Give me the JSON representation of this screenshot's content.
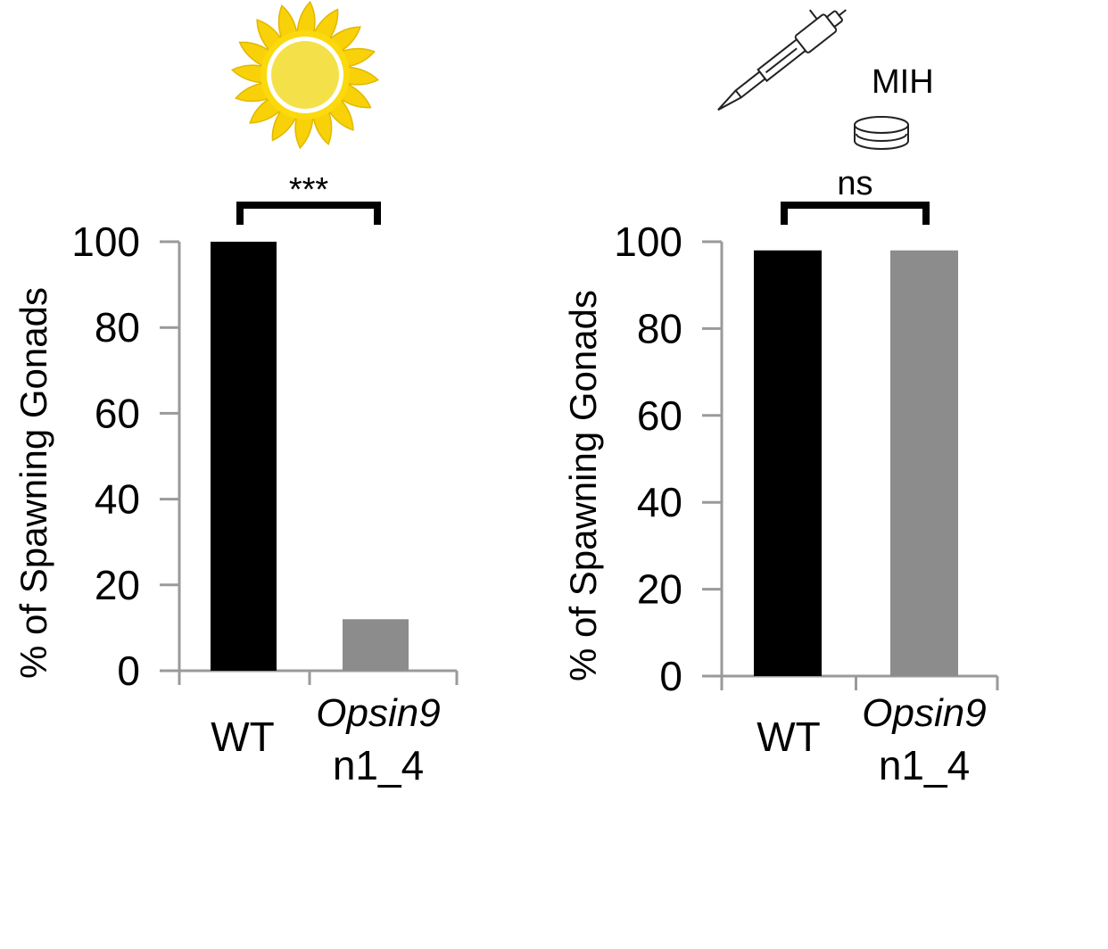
{
  "chart_data": [
    {
      "type": "bar",
      "condition_icon": "sun-icon",
      "categories": [
        "WT",
        "Opsin9 n1_4"
      ],
      "category_lines": [
        [
          "WT"
        ],
        [
          "Opsin9",
          "n1_4"
        ]
      ],
      "category_italic": [
        false,
        true
      ],
      "values": [
        100,
        12
      ],
      "colors": [
        "#000000",
        "#8c8c8c"
      ],
      "ylabel": "% of Spawning Gonads",
      "ylim": [
        0,
        100
      ],
      "yticks": [
        "0",
        "20",
        "40",
        "60",
        "80",
        "100"
      ],
      "significance": "***",
      "grid": false
    },
    {
      "type": "bar",
      "condition_icon": "pipette-dish-icon",
      "condition_label": "MIH",
      "categories": [
        "WT",
        "Opsin9 n1_4"
      ],
      "category_lines": [
        [
          "WT"
        ],
        [
          "Opsin9",
          "n1_4"
        ]
      ],
      "category_italic": [
        false,
        true
      ],
      "values": [
        98,
        98
      ],
      "colors": [
        "#000000",
        "#8c8c8c"
      ],
      "ylabel": "% of Spawning Gonads",
      "ylim": [
        0,
        100
      ],
      "yticks": [
        "0",
        "20",
        "40",
        "60",
        "80",
        "100"
      ],
      "significance": "ns",
      "grid": false
    }
  ]
}
